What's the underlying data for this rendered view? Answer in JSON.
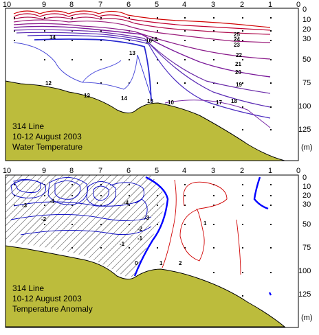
{
  "panels": [
    {
      "id": "temperature",
      "title_lines": [
        "314 Line",
        "10-12 August 2003",
        "Water Temperature"
      ],
      "station_labels": [
        "10",
        "9",
        "8",
        "7",
        "6",
        "5",
        "4",
        "3",
        "2",
        "1",
        "0"
      ],
      "depth_labels": [
        "0",
        "10",
        "20",
        "30",
        "50",
        "75",
        "100",
        "125"
      ],
      "depth_unit": "(m)",
      "contour_labels": [
        "14",
        "12",
        "13",
        "14",
        "15",
        "16",
        "17",
        "18",
        "19",
        "20",
        "21",
        "22",
        "23",
        "24",
        "25",
        "13",
        "16",
        "10"
      ]
    },
    {
      "id": "anomaly",
      "title_lines": [
        "314 Line",
        "10-12 August 2003",
        "Temperature Anomaly"
      ],
      "station_labels": [
        "10",
        "9",
        "8",
        "7",
        "6",
        "5",
        "4",
        "3",
        "2",
        "1",
        "0"
      ],
      "depth_labels": [
        "0",
        "10",
        "20",
        "30",
        "50",
        "75",
        "100",
        "125"
      ],
      "depth_unit": "(m)",
      "contour_labels": [
        "-3",
        "-4",
        "-2",
        "-1",
        "-3",
        "-2",
        "-1",
        "0",
        "1",
        "1",
        "2",
        "-4"
      ]
    }
  ],
  "colors": {
    "seafloor": "#bcbc3c",
    "warm_contour": "#d00000",
    "cool_contour": "#0000c0",
    "zero_contour": "#0000ff",
    "mid_contour": "#8a1a8a"
  }
}
